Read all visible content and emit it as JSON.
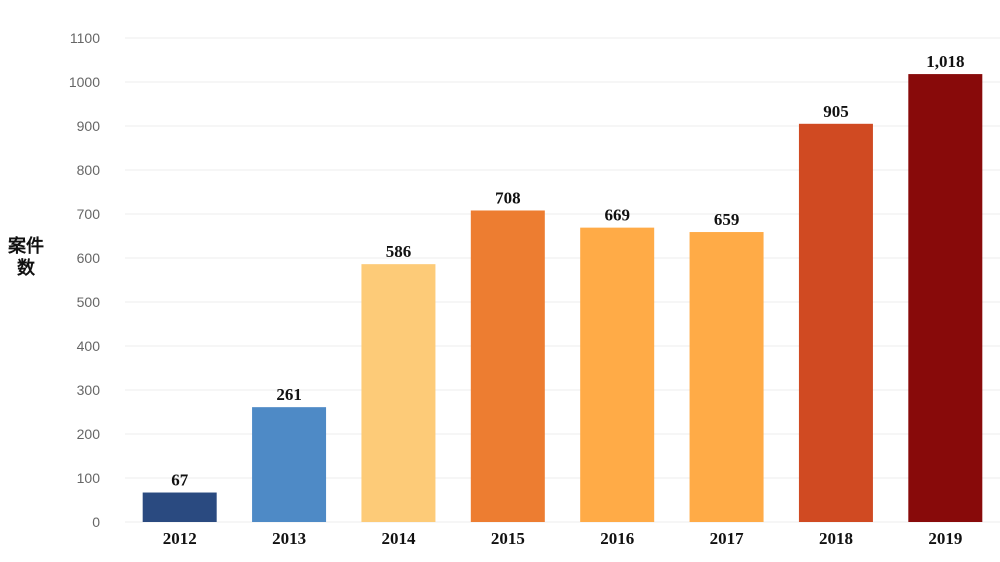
{
  "chart_data": {
    "type": "bar",
    "title": "",
    "xlabel": "",
    "ylabel": "案件数",
    "categories": [
      "2012",
      "2013",
      "2014",
      "2015",
      "2016",
      "2017",
      "2018",
      "2019"
    ],
    "values": [
      67,
      261,
      586,
      708,
      669,
      659,
      905,
      1018
    ],
    "value_labels": [
      "67",
      "261",
      "586",
      "708",
      "669",
      "659",
      "905",
      "1,018"
    ],
    "ylim": [
      0,
      1100
    ],
    "yticks": [
      0,
      100,
      200,
      300,
      400,
      500,
      600,
      700,
      800,
      900,
      1000,
      1100
    ],
    "grid": true,
    "bar_colors": [
      "#2a4a80",
      "#4e8ac6",
      "#fdcb78",
      "#ed7d31",
      "#ffab47",
      "#ffab47",
      "#d04a22",
      "#880a0a"
    ]
  }
}
